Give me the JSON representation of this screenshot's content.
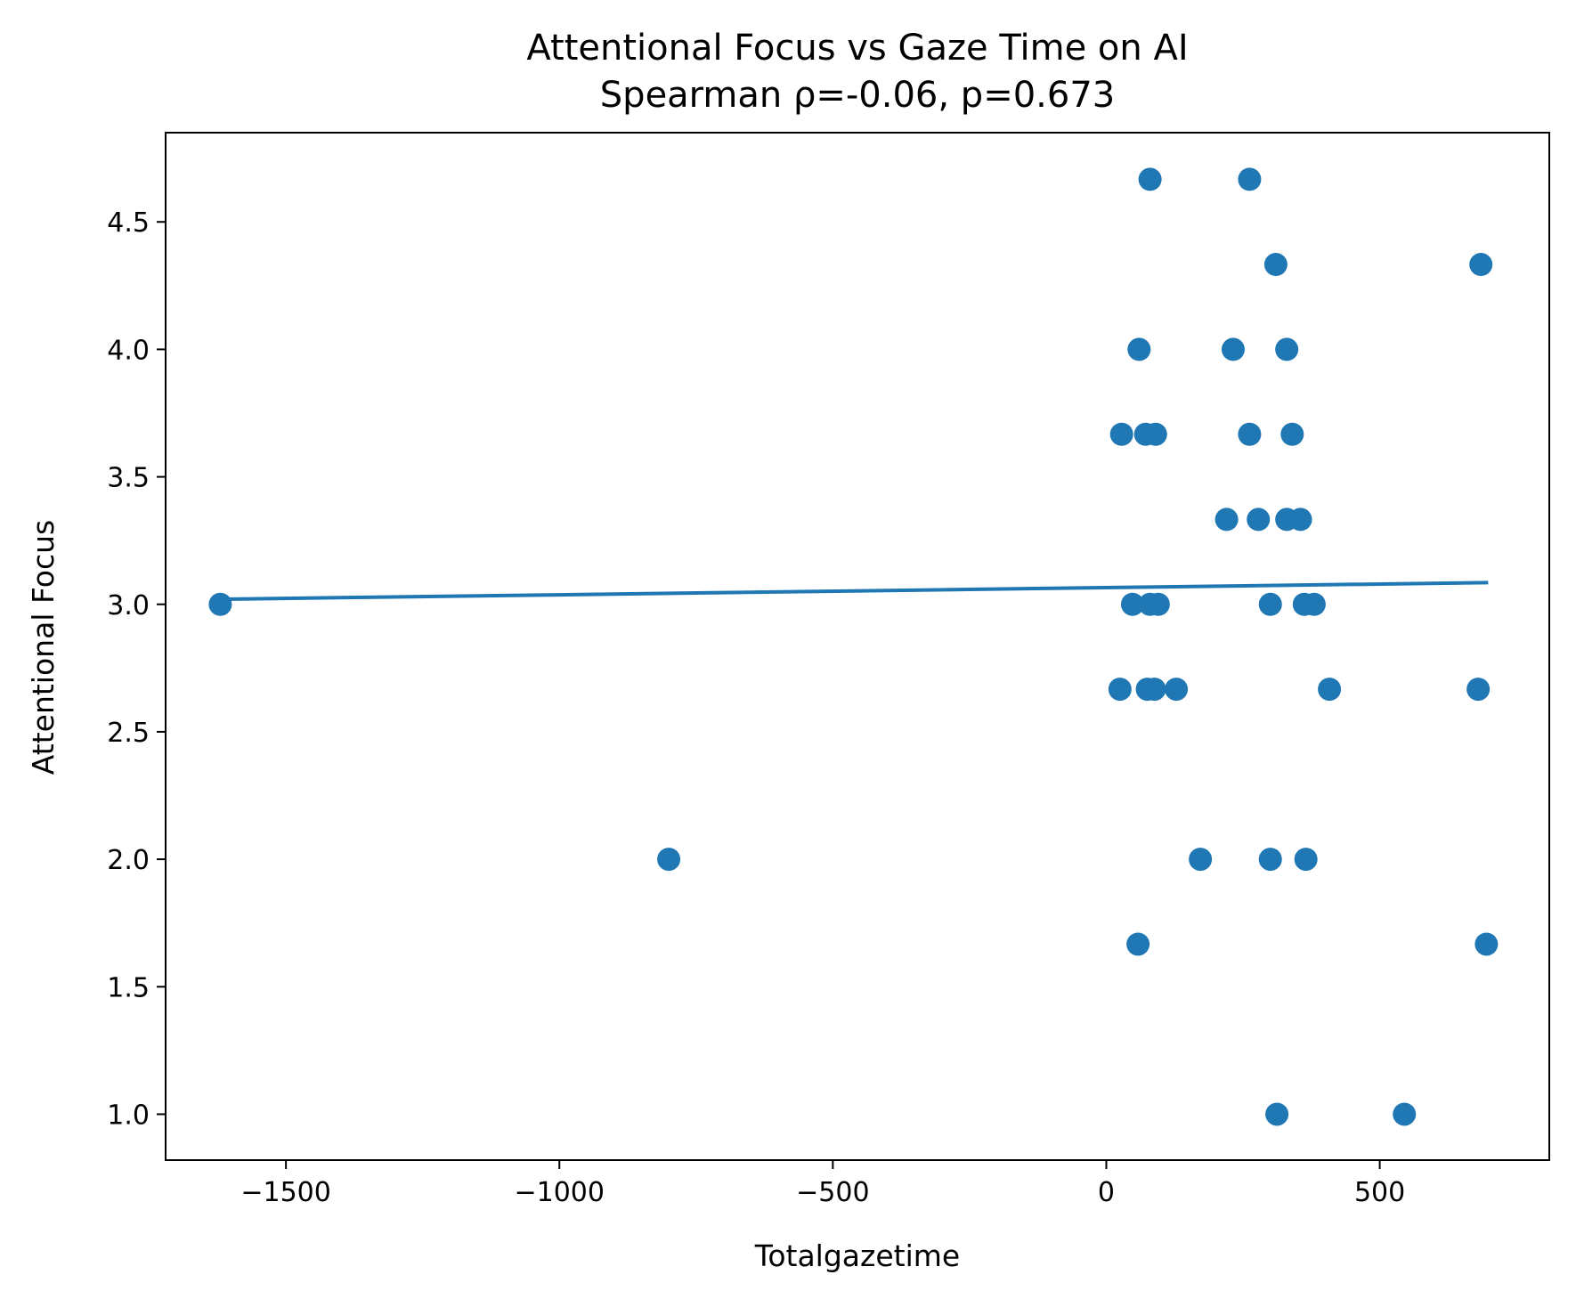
{
  "chart_data": {
    "type": "scatter",
    "title": "Attentional Focus vs Gaze Time on AI",
    "subtitle": "Spearman ρ=-0.06, p=0.673",
    "xlabel": "Totalgazetime",
    "ylabel": "Attentional Focus",
    "xlim": [
      -1720,
      810
    ],
    "ylim": [
      0.82,
      4.85
    ],
    "xticks": [
      -1500,
      -1000,
      -500,
      0,
      500
    ],
    "xtick_labels": [
      "−1500",
      "−1000",
      "−500",
      "0",
      "500"
    ],
    "yticks": [
      1.0,
      1.5,
      2.0,
      2.5,
      3.0,
      3.5,
      4.0,
      4.5
    ],
    "ytick_labels": [
      "1.0",
      "1.5",
      "2.0",
      "2.5",
      "3.0",
      "3.5",
      "4.0",
      "4.5"
    ],
    "grid": false,
    "legend": "none",
    "color": "#1f77b4",
    "points": [
      {
        "x": -1620,
        "y": 3.0
      },
      {
        "x": -800,
        "y": 2.0
      },
      {
        "x": 80,
        "y": 4.667
      },
      {
        "x": 262,
        "y": 4.667
      },
      {
        "x": 310,
        "y": 4.333
      },
      {
        "x": 685,
        "y": 4.333
      },
      {
        "x": 60,
        "y": 4.0
      },
      {
        "x": 232,
        "y": 4.0
      },
      {
        "x": 330,
        "y": 4.0
      },
      {
        "x": 28,
        "y": 3.667
      },
      {
        "x": 72,
        "y": 3.667
      },
      {
        "x": 90,
        "y": 3.667
      },
      {
        "x": 262,
        "y": 3.667
      },
      {
        "x": 340,
        "y": 3.667
      },
      {
        "x": 220,
        "y": 3.333
      },
      {
        "x": 278,
        "y": 3.333
      },
      {
        "x": 330,
        "y": 3.333
      },
      {
        "x": 355,
        "y": 3.333
      },
      {
        "x": 48,
        "y": 3.0
      },
      {
        "x": 80,
        "y": 3.0
      },
      {
        "x": 95,
        "y": 3.0
      },
      {
        "x": 300,
        "y": 3.0
      },
      {
        "x": 362,
        "y": 3.0
      },
      {
        "x": 380,
        "y": 3.0
      },
      {
        "x": 25,
        "y": 2.667
      },
      {
        "x": 75,
        "y": 2.667
      },
      {
        "x": 88,
        "y": 2.667
      },
      {
        "x": 128,
        "y": 2.667
      },
      {
        "x": 408,
        "y": 2.667
      },
      {
        "x": 680,
        "y": 2.667
      },
      {
        "x": 172,
        "y": 2.0
      },
      {
        "x": 300,
        "y": 2.0
      },
      {
        "x": 365,
        "y": 2.0
      },
      {
        "x": 58,
        "y": 1.667
      },
      {
        "x": 695,
        "y": 1.667
      },
      {
        "x": 312,
        "y": 1.0
      },
      {
        "x": 545,
        "y": 1.0
      }
    ],
    "trend_line": {
      "x": [
        -1620,
        695
      ],
      "y": [
        3.02,
        3.085
      ]
    }
  }
}
